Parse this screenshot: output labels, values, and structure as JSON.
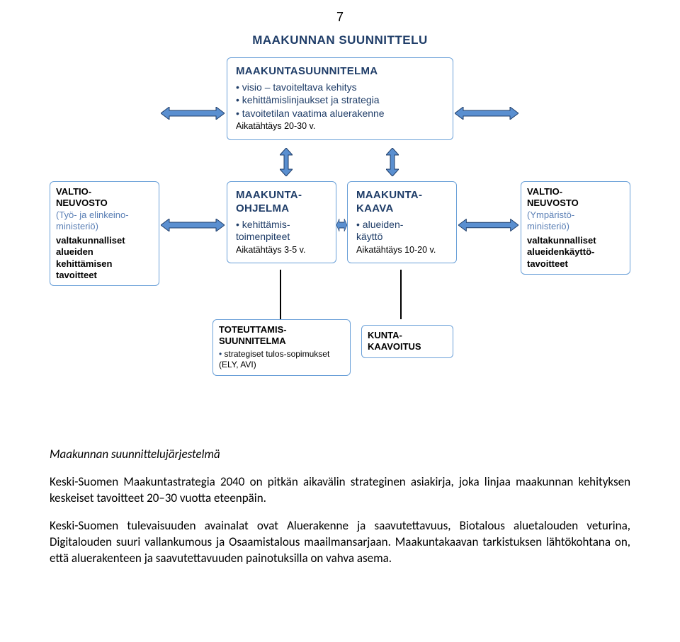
{
  "page_number": "7",
  "colors": {
    "heading_blue": "#1f3d68",
    "sub_blue": "#5a7fb5",
    "box_border": "#6aa0d8",
    "arrow_fill": "#5a8fd0",
    "arrow_stroke": "#1f3d68",
    "text_black": "#000000",
    "background": "#ffffff"
  },
  "typography": {
    "title_fontsize": 17,
    "box_head_fontsize": 15,
    "bullet_fontsize": 14,
    "footer_fontsize": 12.5,
    "prose_fontsize": 17
  },
  "diagram": {
    "type": "flowchart",
    "title": "MAAKUNNAN SUUNNITTELU",
    "top_box": {
      "heading": "MAAKUNTASUUNNITELMA",
      "bullets": [
        "visio – tavoiteltava kehitys",
        "kehittämislinjaukset ja strategia",
        "tavoitetilan vaatima aluerakenne"
      ],
      "footer": "Aikatähtäys 20-30 v."
    },
    "left_box": {
      "heading": "VALTIO-NEUVOSTO",
      "sub": "(Työ- ja elinkeino-ministeriö)",
      "body": "valtakunnalliset alueiden kehittämisen tavoitteet"
    },
    "mid_left_box": {
      "heading": "MAAKUNTA-OHJELMA",
      "bullets": [
        "kehittämis-toimenpiteet"
      ],
      "footer": "Aikatähtäys 3-5 v."
    },
    "mid_right_box": {
      "heading": "MAAKUNTA-KAAVA",
      "bullets": [
        "alueiden-käyttö"
      ],
      "footer": "Aikatähtäys 10-20 v."
    },
    "right_box": {
      "heading": "VALTIO-NEUVOSTO",
      "sub": "(Ympäristö-ministeriö)",
      "body": "valtakunnalliset alueidenkäyttö-tavoitteet"
    },
    "bottom_left_box": {
      "heading": "TOTEUTTAMIS-SUUNNITELMA",
      "bullets": [
        "strategiset tulos-sopimukset (ELY, AVI)"
      ]
    },
    "bottom_right_box": {
      "heading": "KUNTA-KAAVOITUS"
    }
  },
  "caption": "Maakunnan suunnittelujärjestelmä",
  "prose": {
    "p1": "Keski-Suomen Maakuntastrategia 2040 on pitkän aikavälin strateginen asiakirja, joka linjaa maakunnan kehityksen keskeiset tavoitteet 20–30 vuotta eteenpäin.",
    "p2": "Keski-Suomen tulevaisuuden avainalat ovat Aluerakenne ja saavutettavuus, Biotalous aluetalouden veturina, Digitalouden suuri vallankumous ja Osaamistalous maailmansarjaan. Maakuntakaavan tarkistuksen lähtökohtana on, että aluerakenteen ja saavutettavuuden painotuksilla on vahva asema."
  }
}
